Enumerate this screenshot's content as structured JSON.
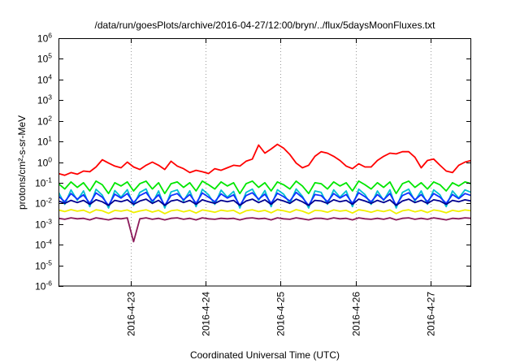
{
  "chart_data": {
    "type": "line",
    "title": "/data/run/goesPlots/archive/2016-04-27/12:00/bryn/../flux/5daysMoonFluxes.txt",
    "xlabel": "Coordinated Universal Time (UTC)",
    "ylabel": "protons/cm²-s-sr-MeV",
    "yscale": "log",
    "ylim": [
      1e-06,
      1000000.0
    ],
    "xlim": [
      "2016-04-22 01:00",
      "2016-04-27 13:00"
    ],
    "grid": {
      "x": true,
      "y": false
    },
    "legend": false,
    "yticks": [
      {
        "value": 1000000.0,
        "base": "10",
        "exp": "6"
      },
      {
        "value": 100000.0,
        "base": "10",
        "exp": "5"
      },
      {
        "value": 10000.0,
        "base": "10",
        "exp": "4"
      },
      {
        "value": 1000.0,
        "base": "10",
        "exp": "3"
      },
      {
        "value": 100.0,
        "base": "10",
        "exp": "2"
      },
      {
        "value": 10.0,
        "base": "10",
        "exp": "1"
      },
      {
        "value": 1,
        "base": "10",
        "exp": "0"
      },
      {
        "value": 0.1,
        "base": "10",
        "exp": "-1"
      },
      {
        "value": 0.01,
        "base": "10",
        "exp": "-2"
      },
      {
        "value": 0.001,
        "base": "10",
        "exp": "-3"
      },
      {
        "value": 0.0001,
        "base": "10",
        "exp": "-4"
      },
      {
        "value": 1e-05,
        "base": "10",
        "exp": "-5"
      },
      {
        "value": 1e-06,
        "base": "10",
        "exp": "-6"
      }
    ],
    "xticks": [
      {
        "at": "2016-04-23 00:00",
        "label": "2016-4-23"
      },
      {
        "at": "2016-04-24 00:00",
        "label": "2016-4-24"
      },
      {
        "at": "2016-04-25 00:00",
        "label": "2016-4-25"
      },
      {
        "at": "2016-04-26 00:00",
        "label": "2016-4-26"
      },
      {
        "at": "2016-04-27 00:00",
        "label": "2016-4-27"
      }
    ],
    "x": [
      "2016-04-22 01:00",
      "2016-04-22 03:00",
      "2016-04-22 05:00",
      "2016-04-22 07:00",
      "2016-04-22 09:00",
      "2016-04-22 11:00",
      "2016-04-22 13:00",
      "2016-04-22 15:00",
      "2016-04-22 17:00",
      "2016-04-22 19:00",
      "2016-04-22 21:00",
      "2016-04-22 23:00",
      "2016-04-23 01:00",
      "2016-04-23 03:00",
      "2016-04-23 05:00",
      "2016-04-23 07:00",
      "2016-04-23 09:00",
      "2016-04-23 11:00",
      "2016-04-23 13:00",
      "2016-04-23 15:00",
      "2016-04-23 17:00",
      "2016-04-23 19:00",
      "2016-04-23 21:00",
      "2016-04-23 23:00",
      "2016-04-24 01:00",
      "2016-04-24 03:00",
      "2016-04-24 05:00",
      "2016-04-24 07:00",
      "2016-04-24 09:00",
      "2016-04-24 11:00",
      "2016-04-24 13:00",
      "2016-04-24 15:00",
      "2016-04-24 17:00",
      "2016-04-24 19:00",
      "2016-04-24 21:00",
      "2016-04-24 23:00",
      "2016-04-25 01:00",
      "2016-04-25 03:00",
      "2016-04-25 05:00",
      "2016-04-25 07:00",
      "2016-04-25 09:00",
      "2016-04-25 11:00",
      "2016-04-25 13:00",
      "2016-04-25 15:00",
      "2016-04-25 17:00",
      "2016-04-25 19:00",
      "2016-04-25 21:00",
      "2016-04-25 23:00",
      "2016-04-26 01:00",
      "2016-04-26 03:00",
      "2016-04-26 05:00",
      "2016-04-26 07:00",
      "2016-04-26 09:00",
      "2016-04-26 11:00",
      "2016-04-26 13:00",
      "2016-04-26 15:00",
      "2016-04-26 17:00",
      "2016-04-26 19:00",
      "2016-04-26 21:00",
      "2016-04-26 23:00",
      "2016-04-27 01:00",
      "2016-04-27 03:00",
      "2016-04-27 05:00",
      "2016-04-27 07:00",
      "2016-04-27 09:00",
      "2016-04-27 11:00",
      "2016-04-27 13:00"
    ],
    "series": [
      {
        "color": "#ff0000",
        "values": [
          0.28,
          0.23,
          0.31,
          0.26,
          0.37,
          0.34,
          0.58,
          1.3,
          0.9,
          0.64,
          0.53,
          1.0,
          0.58,
          0.44,
          0.7,
          1.0,
          0.7,
          0.44,
          1.1,
          0.64,
          0.48,
          0.31,
          0.4,
          0.34,
          0.28,
          0.48,
          0.4,
          0.53,
          0.7,
          0.64,
          1.1,
          1.4,
          6.7,
          2.7,
          4.3,
          7.3,
          4.7,
          2.3,
          0.9,
          0.53,
          0.7,
          1.9,
          3.2,
          2.7,
          1.9,
          1.2,
          0.64,
          0.48,
          0.83,
          0.58,
          0.58,
          1.2,
          1.9,
          2.7,
          2.5,
          3.2,
          3.2,
          1.7,
          0.53,
          1.2,
          1.4,
          0.7,
          0.37,
          0.31,
          0.7,
          1.0,
          1.2
        ]
      },
      {
        "color": "#00e600",
        "values": [
          0.09,
          0.05,
          0.11,
          0.06,
          0.1,
          0.04,
          0.12,
          0.08,
          0.03,
          0.1,
          0.07,
          0.11,
          0.04,
          0.09,
          0.12,
          0.05,
          0.1,
          0.03,
          0.09,
          0.11,
          0.06,
          0.1,
          0.04,
          0.12,
          0.08,
          0.05,
          0.11,
          0.07,
          0.1,
          0.03,
          0.09,
          0.12,
          0.06,
          0.1,
          0.04,
          0.11,
          0.08,
          0.05,
          0.12,
          0.07,
          0.03,
          0.1,
          0.09,
          0.05,
          0.11,
          0.07,
          0.1,
          0.04,
          0.12,
          0.08,
          0.05,
          0.1,
          0.06,
          0.11,
          0.03,
          0.09,
          0.12,
          0.06,
          0.1,
          0.05,
          0.11,
          0.08,
          0.04,
          0.1,
          0.07,
          0.11,
          0.09
        ]
      },
      {
        "color": "#00c0d0",
        "values": [
          0.035,
          0.009,
          0.045,
          0.014,
          0.04,
          0.007,
          0.048,
          0.025,
          0.006,
          0.042,
          0.02,
          0.046,
          0.008,
          0.034,
          0.05,
          0.01,
          0.04,
          0.006,
          0.036,
          0.045,
          0.013,
          0.041,
          0.007,
          0.048,
          0.026,
          0.009,
          0.044,
          0.02,
          0.038,
          0.006,
          0.034,
          0.049,
          0.014,
          0.042,
          0.007,
          0.046,
          0.028,
          0.01,
          0.05,
          0.022,
          0.006,
          0.04,
          0.034,
          0.009,
          0.045,
          0.02,
          0.04,
          0.007,
          0.049,
          0.027,
          0.009,
          0.04,
          0.014,
          0.045,
          0.006,
          0.034,
          0.049,
          0.013,
          0.04,
          0.009,
          0.045,
          0.026,
          0.007,
          0.04,
          0.018,
          0.045,
          0.034
        ]
      },
      {
        "color": "#1030ff",
        "values": [
          0.022,
          0.012,
          0.03,
          0.016,
          0.026,
          0.01,
          0.032,
          0.02,
          0.008,
          0.028,
          0.018,
          0.03,
          0.011,
          0.024,
          0.034,
          0.013,
          0.026,
          0.008,
          0.024,
          0.03,
          0.015,
          0.027,
          0.01,
          0.032,
          0.02,
          0.012,
          0.029,
          0.018,
          0.026,
          0.008,
          0.024,
          0.033,
          0.016,
          0.028,
          0.01,
          0.031,
          0.021,
          0.013,
          0.034,
          0.019,
          0.008,
          0.027,
          0.024,
          0.012,
          0.03,
          0.018,
          0.027,
          0.01,
          0.033,
          0.021,
          0.012,
          0.027,
          0.015,
          0.03,
          0.008,
          0.024,
          0.033,
          0.015,
          0.027,
          0.012,
          0.03,
          0.02,
          0.01,
          0.027,
          0.017,
          0.03,
          0.024
        ]
      },
      {
        "color": "#000090",
        "values": [
          0.013,
          0.01,
          0.014,
          0.011,
          0.014,
          0.009,
          0.015,
          0.012,
          0.008,
          0.014,
          0.012,
          0.015,
          0.009,
          0.013,
          0.016,
          0.01,
          0.014,
          0.008,
          0.013,
          0.015,
          0.011,
          0.014,
          0.009,
          0.015,
          0.012,
          0.01,
          0.014,
          0.012,
          0.014,
          0.008,
          0.013,
          0.016,
          0.011,
          0.015,
          0.009,
          0.016,
          0.013,
          0.01,
          0.016,
          0.012,
          0.008,
          0.014,
          0.013,
          0.01,
          0.015,
          0.012,
          0.014,
          0.009,
          0.016,
          0.013,
          0.01,
          0.014,
          0.011,
          0.015,
          0.008,
          0.013,
          0.016,
          0.011,
          0.014,
          0.01,
          0.015,
          0.013,
          0.009,
          0.014,
          0.012,
          0.015,
          0.013
        ]
      },
      {
        "color": "#f0f000",
        "values": [
          0.0048,
          0.004,
          0.005,
          0.0042,
          0.0047,
          0.0035,
          0.0049,
          0.0044,
          0.0033,
          0.0046,
          0.0042,
          0.0048,
          0.0036,
          0.0043,
          0.0049,
          0.0038,
          0.0046,
          0.0032,
          0.0044,
          0.0048,
          0.0039,
          0.0046,
          0.0034,
          0.0048,
          0.0043,
          0.0037,
          0.0047,
          0.0042,
          0.0046,
          0.0032,
          0.0044,
          0.0049,
          0.004,
          0.0046,
          0.0035,
          0.0049,
          0.0044,
          0.0037,
          0.005,
          0.0042,
          0.0032,
          0.0046,
          0.0044,
          0.0037,
          0.0048,
          0.0042,
          0.0046,
          0.0034,
          0.0049,
          0.0044,
          0.0037,
          0.0046,
          0.004,
          0.0048,
          0.0032,
          0.0044,
          0.0049,
          0.0039,
          0.0046,
          0.0036,
          0.0048,
          0.0043,
          0.0035,
          0.0046,
          0.0041,
          0.0048,
          0.0044
        ]
      },
      {
        "color": "#8b1a5a",
        "values": [
          0.0019,
          0.0017,
          0.002,
          0.0018,
          0.0019,
          0.0016,
          0.002,
          0.0018,
          0.0016,
          0.0019,
          0.0018,
          0.002,
          0.00014,
          0.0018,
          0.002,
          0.0017,
          0.0019,
          0.0016,
          0.0019,
          0.002,
          0.0017,
          0.0019,
          0.0016,
          0.002,
          0.0018,
          0.0017,
          0.0019,
          0.0018,
          0.0019,
          0.0016,
          0.0019,
          0.002,
          0.0018,
          0.0019,
          0.0016,
          0.002,
          0.0018,
          0.0017,
          0.002,
          0.0018,
          0.0016,
          0.0019,
          0.0019,
          0.0017,
          0.002,
          0.0018,
          0.0019,
          0.0016,
          0.002,
          0.0018,
          0.0017,
          0.0019,
          0.0017,
          0.002,
          0.0016,
          0.0019,
          0.002,
          0.0017,
          0.0019,
          0.0017,
          0.002,
          0.0018,
          0.0016,
          0.0019,
          0.0018,
          0.002,
          0.0019
        ]
      }
    ]
  }
}
